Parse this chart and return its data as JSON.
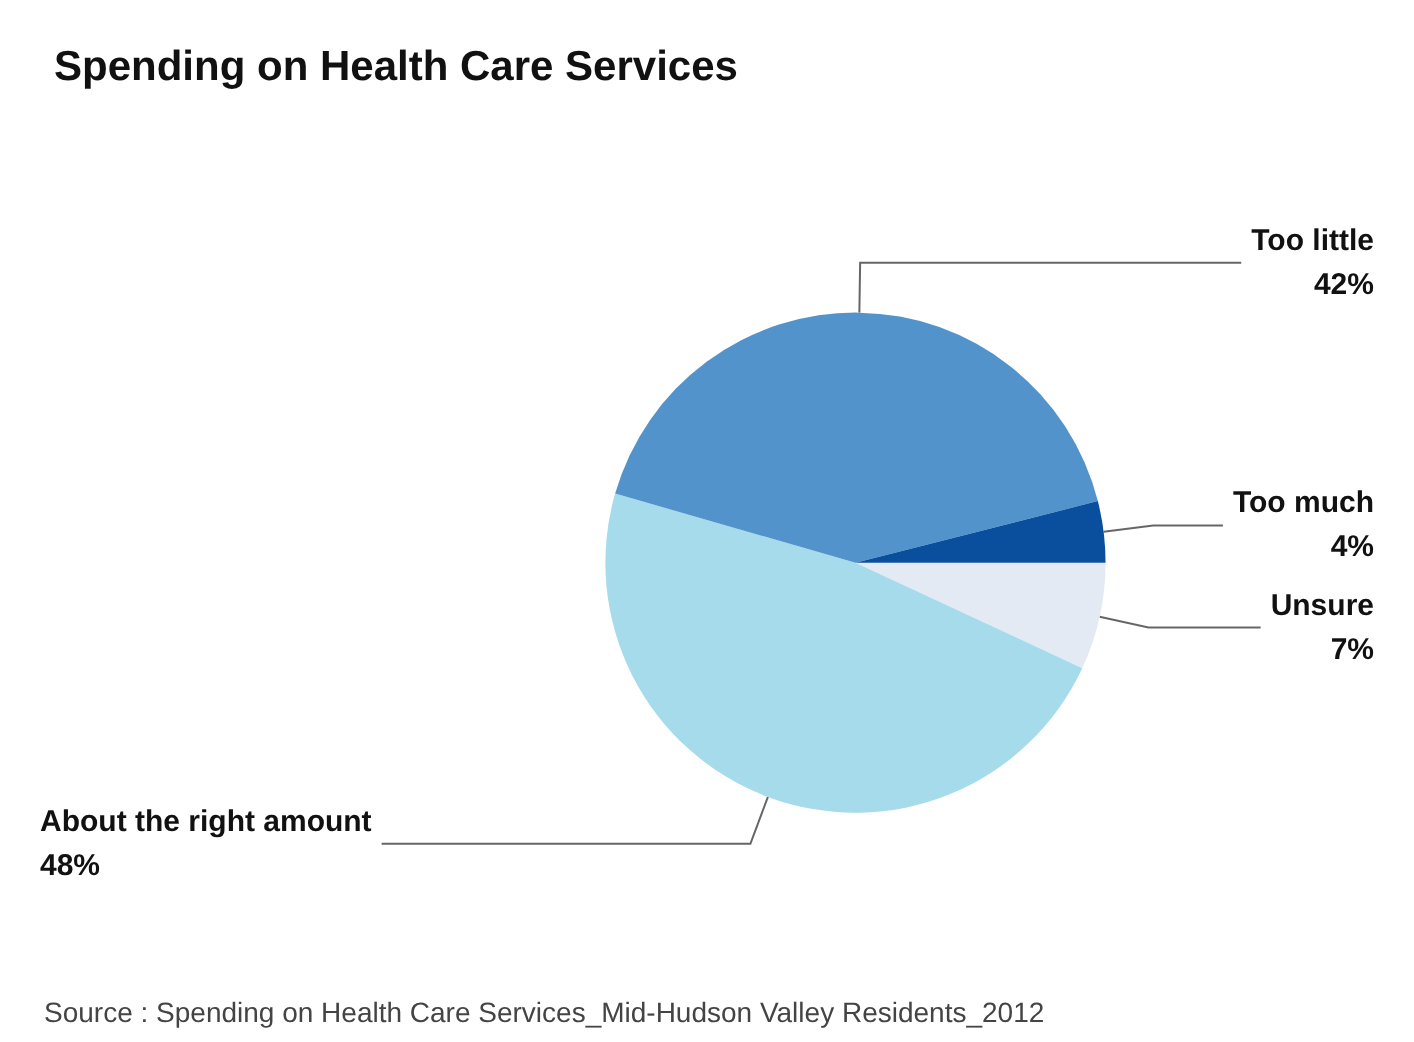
{
  "chart_data": {
    "type": "pie",
    "title": "Spending on Health Care Services",
    "categories": [
      "Unsure",
      "About the right amount",
      "Too little",
      "Too much"
    ],
    "values": [
      7,
      48,
      42,
      4
    ],
    "value_labels": [
      "7%",
      "48%",
      "42%",
      "4%"
    ],
    "colors": [
      "#e3eaf4",
      "#a5dbea",
      "#5393cb",
      "#0a4f9e"
    ],
    "annotations": [
      "Source : Spending on Health Care Services_Mid-Hudson Valley Residents_2012"
    ]
  }
}
